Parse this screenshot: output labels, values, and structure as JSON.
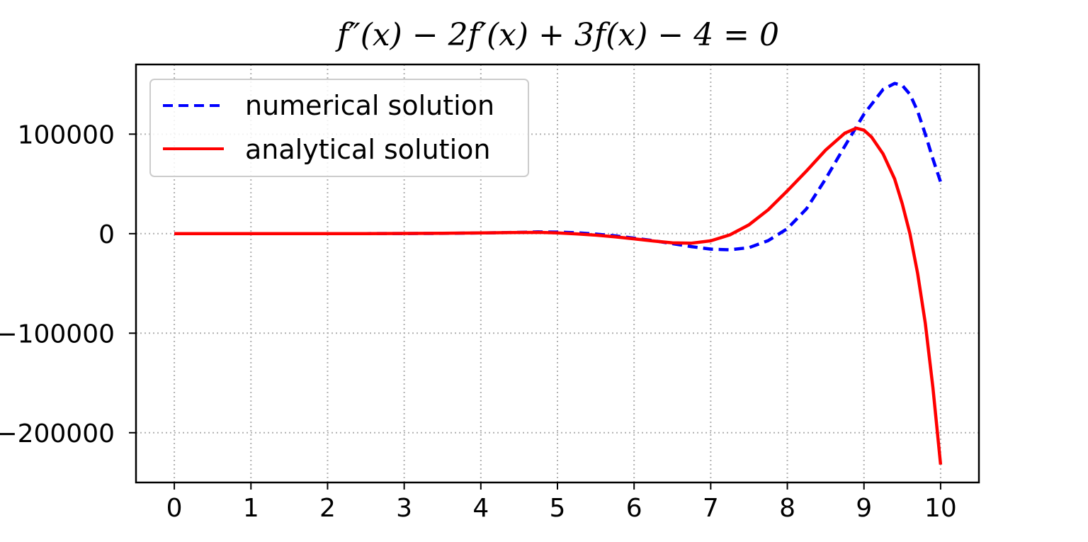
{
  "chart_data": {
    "type": "line",
    "title": "f″(x) − 2f′(x) + 3f(x) − 4 = 0",
    "xlabel": "",
    "ylabel": "",
    "xlim": [
      -0.5,
      10.5
    ],
    "ylim": [
      -250000,
      170000
    ],
    "x_ticks": [
      0,
      1,
      2,
      3,
      4,
      5,
      6,
      7,
      8,
      9,
      10
    ],
    "x_tick_labels": [
      "0",
      "1",
      "2",
      "3",
      "4",
      "5",
      "6",
      "7",
      "8",
      "9",
      "10"
    ],
    "y_ticks": [
      -200000,
      -100000,
      0,
      100000
    ],
    "y_tick_labels": [
      "−200000",
      "−100000",
      "0",
      "100000"
    ],
    "grid": true,
    "legend_position": "upper-left",
    "series": [
      {
        "name": "numerical solution",
        "color": "#0000ff",
        "style": "dashed",
        "points": [
          [
            0,
            0
          ],
          [
            0.5,
            10
          ],
          [
            1,
            30
          ],
          [
            1.5,
            50
          ],
          [
            2,
            80
          ],
          [
            2.5,
            100
          ],
          [
            3,
            150
          ],
          [
            3.5,
            300
          ],
          [
            4,
            700
          ],
          [
            4.5,
            1300
          ],
          [
            4.75,
            1800
          ],
          [
            5,
            1600
          ],
          [
            5.25,
            900
          ],
          [
            5.5,
            -400
          ],
          [
            5.75,
            -2200
          ],
          [
            6,
            -4500
          ],
          [
            6.25,
            -7000
          ],
          [
            6.5,
            -10000
          ],
          [
            6.75,
            -13000
          ],
          [
            7,
            -15500
          ],
          [
            7.25,
            -16200
          ],
          [
            7.5,
            -14000
          ],
          [
            7.75,
            -7000
          ],
          [
            8,
            5000
          ],
          [
            8.25,
            25000
          ],
          [
            8.5,
            55000
          ],
          [
            8.75,
            88000
          ],
          [
            9,
            120000
          ],
          [
            9.25,
            145000
          ],
          [
            9.4,
            151000
          ],
          [
            9.5,
            149000
          ],
          [
            9.6,
            140000
          ],
          [
            9.7,
            123000
          ],
          [
            9.8,
            100000
          ],
          [
            9.9,
            75000
          ],
          [
            10,
            52000
          ]
        ]
      },
      {
        "name": "analytical solution",
        "color": "#ff0000",
        "style": "solid",
        "points": [
          [
            0,
            0
          ],
          [
            0.5,
            10
          ],
          [
            1,
            30
          ],
          [
            1.5,
            50
          ],
          [
            2,
            80
          ],
          [
            2.5,
            100
          ],
          [
            3,
            200
          ],
          [
            3.5,
            400
          ],
          [
            4,
            800
          ],
          [
            4.5,
            1200
          ],
          [
            4.75,
            1300
          ],
          [
            5,
            800
          ],
          [
            5.25,
            -200
          ],
          [
            5.5,
            -1500
          ],
          [
            5.75,
            -3200
          ],
          [
            6,
            -5200
          ],
          [
            6.25,
            -7300
          ],
          [
            6.5,
            -9200
          ],
          [
            6.75,
            -9500
          ],
          [
            7,
            -7200
          ],
          [
            7.25,
            -1200
          ],
          [
            7.5,
            9000
          ],
          [
            7.75,
            24000
          ],
          [
            8,
            43000
          ],
          [
            8.25,
            63000
          ],
          [
            8.5,
            84000
          ],
          [
            8.75,
            101000
          ],
          [
            8.9,
            106000
          ],
          [
            9,
            104000
          ],
          [
            9.1,
            97000
          ],
          [
            9.25,
            80000
          ],
          [
            9.4,
            55000
          ],
          [
            9.5,
            30000
          ],
          [
            9.6,
            0
          ],
          [
            9.7,
            -40000
          ],
          [
            9.8,
            -90000
          ],
          [
            9.9,
            -155000
          ],
          [
            10,
            -232000
          ]
        ]
      }
    ]
  }
}
